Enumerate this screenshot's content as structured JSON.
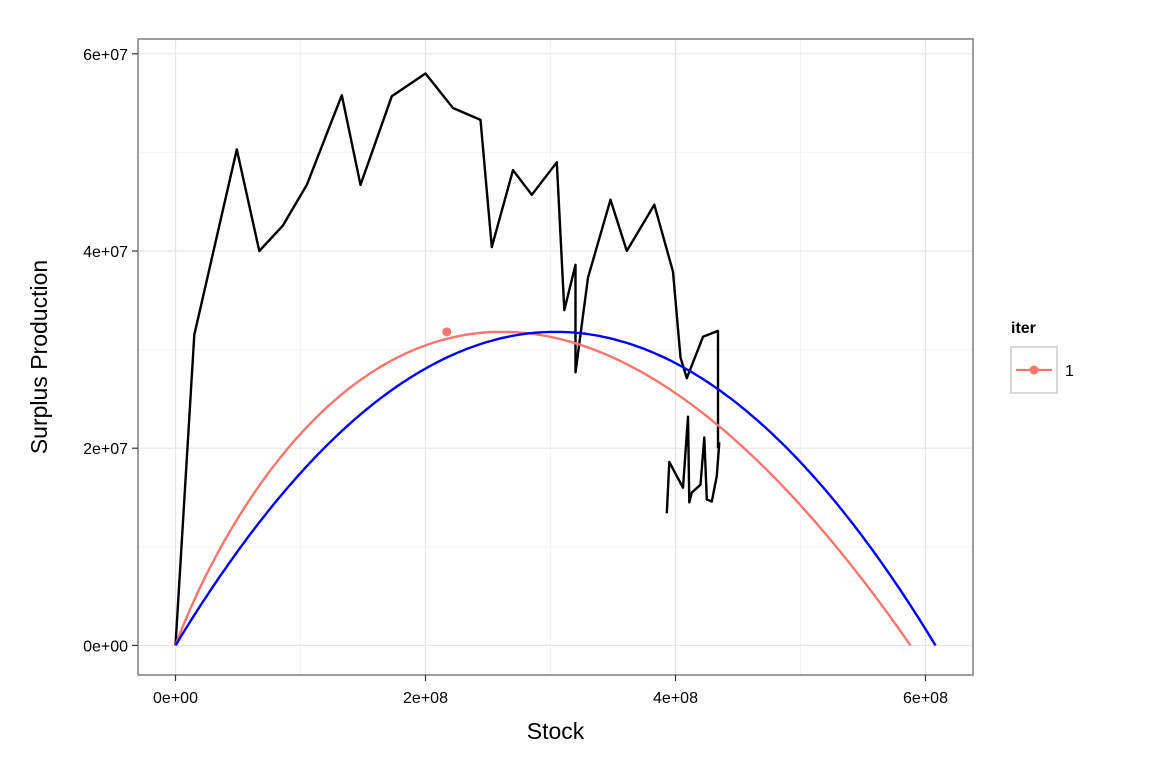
{
  "chart_data": {
    "type": "line",
    "title": "",
    "xlabel": "Stock",
    "ylabel": "Surplus Production",
    "xlim": [
      -30000000,
      638000000
    ],
    "ylim": [
      -3000000,
      61500000
    ],
    "x_ticks": [
      0,
      200000000,
      400000000,
      600000000
    ],
    "x_tick_labels": [
      "0e+00",
      "2e+08",
      "4e+08",
      "6e+08"
    ],
    "y_ticks": [
      0,
      20000000,
      40000000,
      60000000
    ],
    "y_tick_labels": [
      "0e+00",
      "2e+07",
      "4e+07",
      "6e+07"
    ],
    "grid": true,
    "legend": {
      "title": "iter",
      "placement": "right",
      "entries": [
        {
          "label": "1",
          "color": "#F8766D"
        }
      ]
    },
    "series": [
      {
        "kind": "observed-path",
        "color": "#000000",
        "x": [
          0,
          15000000,
          49000000,
          67000000,
          86000000,
          105000000,
          133000000,
          148000000,
          173000000,
          200000000,
          222000000,
          244000000,
          253000000,
          270000000,
          285000000,
          305000000,
          311000000,
          320000000,
          320000000,
          330000000,
          348000000,
          361000000,
          383000000,
          398000000,
          404000000,
          409000000,
          422000000,
          434000000,
          434000000
        ],
        "y": [
          0,
          31500000,
          50300000,
          40000000,
          42600000,
          46700000,
          55800000,
          46700000,
          55700000,
          58000000,
          54500000,
          53300000,
          40400000,
          48200000,
          45700000,
          49000000,
          34000000,
          38600000,
          27700000,
          37300000,
          45200000,
          40000000,
          44700000,
          37900000,
          29200000,
          27100000,
          31300000,
          31900000,
          20000000
        ]
      },
      {
        "kind": "observed-path-recent",
        "color": "#000000",
        "x": [
          393000000,
          395000000,
          406000000,
          410000000,
          411000000,
          413000000,
          420000000,
          423000000,
          425000000,
          429000000,
          433000000,
          435000000
        ],
        "y": [
          13400000,
          18600000,
          16000000,
          23200000,
          14500000,
          15500000,
          16300000,
          21100000,
          14800000,
          14600000,
          17200000,
          20600000
        ]
      },
      {
        "kind": "fitted-curve",
        "color": "#F8766D",
        "p": 0.5,
        "k": 588000000,
        "msy": 31800000
      },
      {
        "kind": "fitted-curve",
        "color": "#0000FF",
        "p": 1,
        "k": 608000000,
        "msy": 31800000
      },
      {
        "kind": "msy-point",
        "color": "#F8766D",
        "x": [
          217000000
        ],
        "y": [
          31800000
        ]
      }
    ]
  }
}
